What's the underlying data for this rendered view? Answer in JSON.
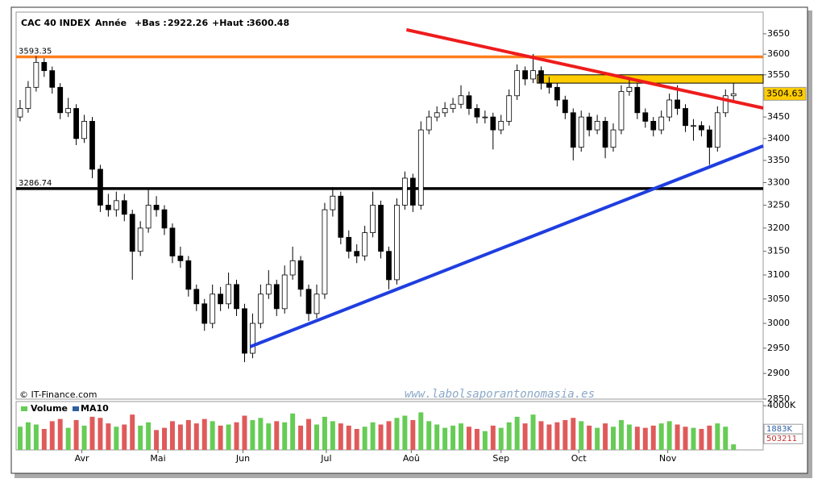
{
  "chart_data": {
    "type": "candlestick",
    "title": "CAC 40 INDEX",
    "period": "Année",
    "stats": [
      {
        "label": "+Bas :",
        "value": 2922.26
      },
      {
        "label": "+Haut :",
        "value": 3600.48
      }
    ],
    "ohlc": [
      [
        3450,
        3490,
        3440,
        3470
      ],
      [
        3470,
        3535,
        3460,
        3520
      ],
      [
        3520,
        3595,
        3510,
        3580
      ],
      [
        3580,
        3590,
        3545,
        3560
      ],
      [
        3560,
        3570,
        3505,
        3520
      ],
      [
        3520,
        3530,
        3445,
        3460
      ],
      [
        3460,
        3495,
        3450,
        3470
      ],
      [
        3470,
        3480,
        3385,
        3400
      ],
      [
        3400,
        3455,
        3390,
        3440
      ],
      [
        3440,
        3450,
        3310,
        3330
      ],
      [
        3330,
        3340,
        3235,
        3250
      ],
      [
        3250,
        3275,
        3225,
        3240
      ],
      [
        3240,
        3280,
        3225,
        3260
      ],
      [
        3260,
        3275,
        3215,
        3230
      ],
      [
        3230,
        3240,
        3090,
        3150
      ],
      [
        3150,
        3215,
        3140,
        3200
      ],
      [
        3200,
        3285,
        3190,
        3250
      ],
      [
        3250,
        3270,
        3225,
        3240
      ],
      [
        3240,
        3250,
        3185,
        3200
      ],
      [
        3200,
        3210,
        3125,
        3140
      ],
      [
        3140,
        3160,
        3115,
        3130
      ],
      [
        3130,
        3140,
        3055,
        3070
      ],
      [
        3070,
        3080,
        3025,
        3040
      ],
      [
        3040,
        3050,
        2985,
        3000
      ],
      [
        3000,
        3080,
        2990,
        3060
      ],
      [
        3060,
        3075,
        3025,
        3040
      ],
      [
        3040,
        3105,
        3030,
        3080
      ],
      [
        3080,
        3090,
        3015,
        3030
      ],
      [
        3030,
        3040,
        2922.26,
        2940
      ],
      [
        2940,
        3020,
        2930,
        3000
      ],
      [
        3000,
        3080,
        2990,
        3060
      ],
      [
        3060,
        3110,
        3050,
        3080
      ],
      [
        3080,
        3090,
        3015,
        3030
      ],
      [
        3030,
        3120,
        3020,
        3100
      ],
      [
        3100,
        3160,
        3090,
        3130
      ],
      [
        3130,
        3140,
        3055,
        3070
      ],
      [
        3070,
        3080,
        3005,
        3020
      ],
      [
        3020,
        3080,
        3010,
        3060
      ],
      [
        3060,
        3255,
        3050,
        3240
      ],
      [
        3240,
        3290,
        3225,
        3270
      ],
      [
        3270,
        3280,
        3165,
        3180
      ],
      [
        3180,
        3195,
        3135,
        3150
      ],
      [
        3150,
        3165,
        3125,
        3140
      ],
      [
        3140,
        3205,
        3130,
        3190
      ],
      [
        3190,
        3280,
        3180,
        3250
      ],
      [
        3250,
        3260,
        3135,
        3150
      ],
      [
        3150,
        3160,
        3070,
        3090
      ],
      [
        3090,
        3265,
        3080,
        3250
      ],
      [
        3250,
        3325,
        3240,
        3310
      ],
      [
        3310,
        3320,
        3235,
        3250
      ],
      [
        3250,
        3440,
        3240,
        3420
      ],
      [
        3420,
        3465,
        3410,
        3450
      ],
      [
        3450,
        3475,
        3440,
        3460
      ],
      [
        3460,
        3485,
        3450,
        3470
      ],
      [
        3470,
        3495,
        3460,
        3480
      ],
      [
        3480,
        3525,
        3470,
        3500
      ],
      [
        3500,
        3510,
        3455,
        3470
      ],
      [
        3470,
        3480,
        3435,
        3450
      ],
      [
        3450,
        3465,
        3435,
        3450
      ],
      [
        3450,
        3460,
        3375,
        3420
      ],
      [
        3420,
        3455,
        3410,
        3440
      ],
      [
        3440,
        3515,
        3430,
        3500
      ],
      [
        3500,
        3575,
        3490,
        3560
      ],
      [
        3560,
        3570,
        3525,
        3540
      ],
      [
        3540,
        3600.48,
        3530,
        3560
      ],
      [
        3560,
        3570,
        3515,
        3530
      ],
      [
        3530,
        3545,
        3505,
        3520
      ],
      [
        3520,
        3530,
        3475,
        3490
      ],
      [
        3490,
        3500,
        3445,
        3460
      ],
      [
        3460,
        3470,
        3350,
        3380
      ],
      [
        3380,
        3465,
        3370,
        3450
      ],
      [
        3450,
        3460,
        3405,
        3420
      ],
      [
        3420,
        3455,
        3410,
        3440
      ],
      [
        3440,
        3450,
        3355,
        3380
      ],
      [
        3380,
        3435,
        3370,
        3420
      ],
      [
        3420,
        3525,
        3410,
        3510
      ],
      [
        3510,
        3545,
        3500,
        3520
      ],
      [
        3520,
        3530,
        3445,
        3460
      ],
      [
        3460,
        3470,
        3425,
        3440
      ],
      [
        3440,
        3450,
        3405,
        3420
      ],
      [
        3420,
        3465,
        3410,
        3450
      ],
      [
        3450,
        3505,
        3440,
        3490
      ],
      [
        3490,
        3525,
        3455,
        3470
      ],
      [
        3470,
        3480,
        3415,
        3430
      ],
      [
        3430,
        3445,
        3395,
        3430
      ],
      [
        3430,
        3440,
        3405,
        3420
      ],
      [
        3420,
        3430,
        3340,
        3380
      ],
      [
        3380,
        3475,
        3370,
        3460
      ],
      [
        3460,
        3515,
        3450,
        3500
      ],
      [
        3500,
        3530,
        3490,
        3504.63
      ]
    ],
    "volume": [
      2100000,
      2500000,
      2300000,
      1900000,
      2600000,
      2800000,
      2000000,
      2700000,
      2200000,
      3000000,
      2900000,
      2400000,
      2100000,
      2300000,
      3200000,
      2200000,
      2500000,
      1800000,
      2000000,
      2600000,
      2300000,
      2700000,
      2400000,
      2800000,
      2600000,
      2200000,
      2300000,
      2500000,
      3100000,
      2700000,
      2900000,
      2400000,
      2600000,
      2500000,
      3300000,
      2200000,
      2800000,
      2300000,
      3000000,
      2600000,
      2400000,
      2200000,
      1900000,
      2100000,
      2500000,
      2300000,
      2600000,
      2900000,
      3100000,
      2700000,
      3400000,
      2600000,
      2300000,
      2000000,
      2200000,
      2400000,
      2100000,
      1900000,
      1700000,
      2200000,
      2000000,
      2500000,
      3000000,
      2400000,
      3200000,
      2600000,
      2300000,
      2500000,
      2700000,
      2900000,
      2600000,
      2200000,
      2000000,
      2400000,
      2100000,
      2700000,
      2300000,
      2100000,
      2000000,
      2200000,
      2400000,
      2600000,
      2300000,
      2100000,
      2000000,
      1900000,
      2200000,
      2400000,
      2100000,
      503211
    ],
    "volume_label": "Volume",
    "ma10_label": "MA10",
    "ma10_value": {
      "value": 1883000,
      "label": "1883K"
    },
    "last_volume": {
      "value": 503211,
      "label": "503211"
    },
    "vlim": [
      0,
      4380000
    ],
    "vticks": [
      {
        "value": 4000000,
        "label": "4000K"
      }
    ],
    "ylim": [
      2850,
      3704
    ],
    "log_scale": true,
    "yticks": [
      2850,
      2900,
      2950,
      3000,
      3050,
      3100,
      3150,
      3200,
      3250,
      3300,
      3350,
      3400,
      3450,
      3500,
      3550,
      3600,
      3650
    ],
    "xlim": [
      -0.5,
      92.7
    ],
    "xticks": [
      {
        "value": 7.7,
        "label": "Avr"
      },
      {
        "value": 17.2,
        "label": "Mai"
      },
      {
        "value": 27.8,
        "label": "Jun"
      },
      {
        "value": 38.2,
        "label": "Jul"
      },
      {
        "value": 48.8,
        "label": "Aoû"
      },
      {
        "value": 60,
        "label": "Sep"
      },
      {
        "value": 69.7,
        "label": "Oct"
      },
      {
        "value": 80.8,
        "label": "Nov"
      }
    ],
    "levels": [
      {
        "value": 3593.35,
        "color": "#ff7f1a"
      },
      {
        "value": 3286.74,
        "color": "#000000"
      }
    ],
    "trend_lines": [
      {
        "x": [
          48.2,
          92.7
        ],
        "y": [
          3660,
          3471
        ],
        "color": "#ee1c1c"
      },
      {
        "x": [
          28.7,
          92.7
        ],
        "y": [
          2953,
          3383
        ],
        "color": "#1f3ee0"
      }
    ],
    "zone": {
      "x": [
        64.5,
        92.7
      ],
      "y": [
        3530,
        3550
      ],
      "color": "#ffcc00"
    },
    "up_color": "#66cc55",
    "down_color": "#e05a5a",
    "source": "© IT-Finance.com",
    "watermark": "www.labolsaporantonomasia.es"
  }
}
